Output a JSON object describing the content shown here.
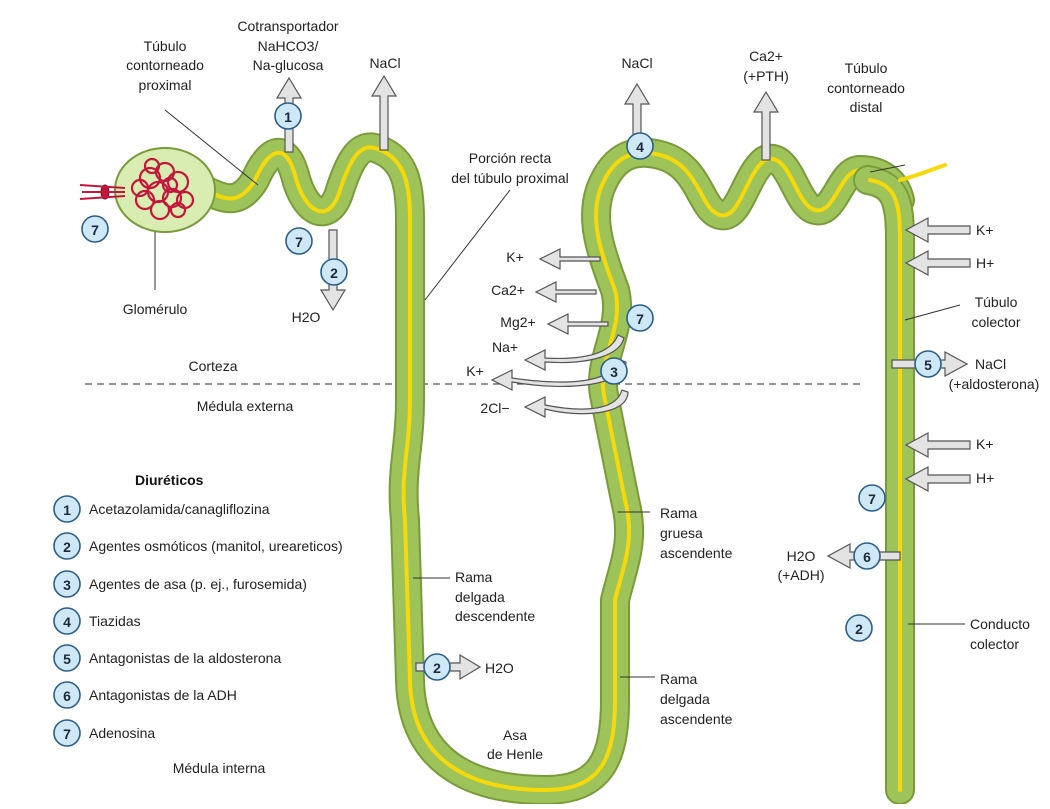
{
  "labels": {
    "proximal": [
      "Túbulo",
      "contorneado",
      "proximal"
    ],
    "cotransporter": [
      "Cotransportador",
      "NaHCO3/",
      "Na-glucosa"
    ],
    "nacl_top_left": "NaCl",
    "nacl_top_right": "NaCl",
    "ca_pth": [
      "Ca2+",
      "(+PTH)"
    ],
    "distal": [
      "Túbulo",
      "contorneado",
      "distal"
    ],
    "pars_recta": [
      "Porción recta",
      "del túbulo proximal"
    ],
    "glomerulus": "Glomérulo",
    "h2o_proximal": "H2O",
    "cortex": "Corteza",
    "outer_medulla": "Médula externa",
    "inner_medulla": "Médula interna",
    "ions_loop": [
      "K+",
      "Ca2+",
      "Mg2+",
      "Na+",
      "K+",
      "2Cl−"
    ],
    "collecting_tubule": [
      "Túbulo",
      "colector"
    ],
    "k_top": "K+",
    "h_top": "H+",
    "nacl_aldo": [
      "NaCl",
      "(+aldosterona)"
    ],
    "k_bottom": "K+",
    "h_bottom": "H+",
    "h2o_adh": [
      "H2O",
      "(+ADH)"
    ],
    "thick_ascending": [
      "Rama",
      "gruesa",
      "ascendente"
    ],
    "thin_descending": [
      "Rama",
      "delgada",
      "descendente"
    ],
    "h2o_loop": "H2O",
    "thin_ascending": [
      "Rama",
      "delgada",
      "ascendente"
    ],
    "loop": [
      "Asa",
      "de Henle"
    ],
    "collecting_duct": [
      "Conducto",
      "colector"
    ]
  },
  "legend": {
    "title": "Diuréticos",
    "items": [
      {
        "num": "1",
        "text": "Acetazolamida/canagliflozina"
      },
      {
        "num": "2",
        "text": "Agentes osmóticos (manitol, ureareticos)"
      },
      {
        "num": "3",
        "text": "Agentes de asa (p. ej., furosemida)"
      },
      {
        "num": "4",
        "text": "Tiazidas"
      },
      {
        "num": "5",
        "text": "Antagonistas de la aldosterona"
      },
      {
        "num": "6",
        "text": "Antagonistas de la ADH"
      },
      {
        "num": "7",
        "text": "Adenosina"
      }
    ]
  },
  "badges": {
    "b1": "1",
    "b2a": "2",
    "b7a": "7",
    "b7b": "7",
    "b4": "4",
    "b7c": "7",
    "b3": "3",
    "b5": "5",
    "b7d": "7",
    "b6": "6",
    "b2b": "2",
    "b2c": "2"
  },
  "colors": {
    "tubule": "#9dc35a",
    "tubule_edge": "#7a9b3a",
    "core": "#f5d90a",
    "badge": "#cfe8f7",
    "glomerulus": "#c4163a",
    "capsule": "#d9ecb2"
  }
}
